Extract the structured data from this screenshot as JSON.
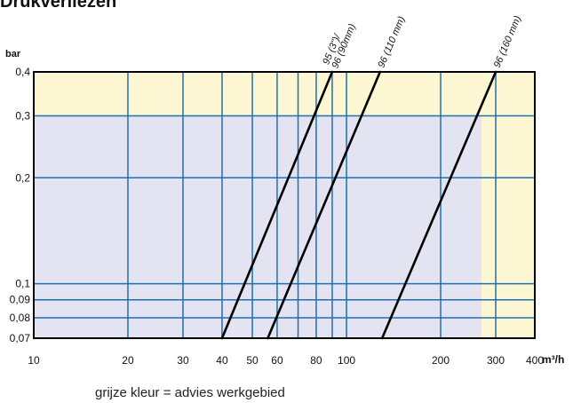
{
  "title": "Drukverliezen",
  "footnote": "grijze kleur = advies werkgebied",
  "colors": {
    "area_background": "#FDF6D3",
    "advice_zone": "#E3E3F1",
    "grid": "#1F6FB4",
    "curve": "#000000",
    "frame": "#000000"
  },
  "chart_data": {
    "type": "line",
    "title": "Drukverliezen",
    "xlabel": "m³/h",
    "ylabel": "bar",
    "x_scale": "log",
    "y_scale": "log",
    "xlim": [
      10,
      400
    ],
    "ylim": [
      0.07,
      0.4
    ],
    "x_ticks": [
      10,
      20,
      30,
      40,
      50,
      60,
      80,
      100,
      200,
      300,
      400
    ],
    "x_tick_labels": [
      "10",
      "20",
      "30",
      "40",
      "50",
      "60",
      "80",
      "100",
      "200",
      "300",
      "400"
    ],
    "x_extra_gridlines": [
      70,
      90
    ],
    "y_ticks": [
      0.07,
      0.08,
      0.09,
      0.1,
      0.2,
      0.3,
      0.4
    ],
    "y_tick_labels": [
      "0,07",
      "0,08",
      "0,09",
      "0,1",
      "0,2",
      "0,3",
      "0,4"
    ],
    "grid": true,
    "advice_zone": {
      "x": [
        10,
        270
      ],
      "y": [
        0.07,
        0.3
      ]
    },
    "series": [
      {
        "name": "95 (3\")/ 96 (90mm)",
        "points": [
          [
            40,
            0.07
          ],
          [
            90,
            0.4
          ]
        ]
      },
      {
        "name": "96 (110 mm)",
        "points": [
          [
            56,
            0.07
          ],
          [
            128,
            0.4
          ]
        ]
      },
      {
        "name": "96 (160 mm)",
        "points": [
          [
            130,
            0.07
          ],
          [
            300,
            0.4
          ]
        ]
      }
    ]
  }
}
